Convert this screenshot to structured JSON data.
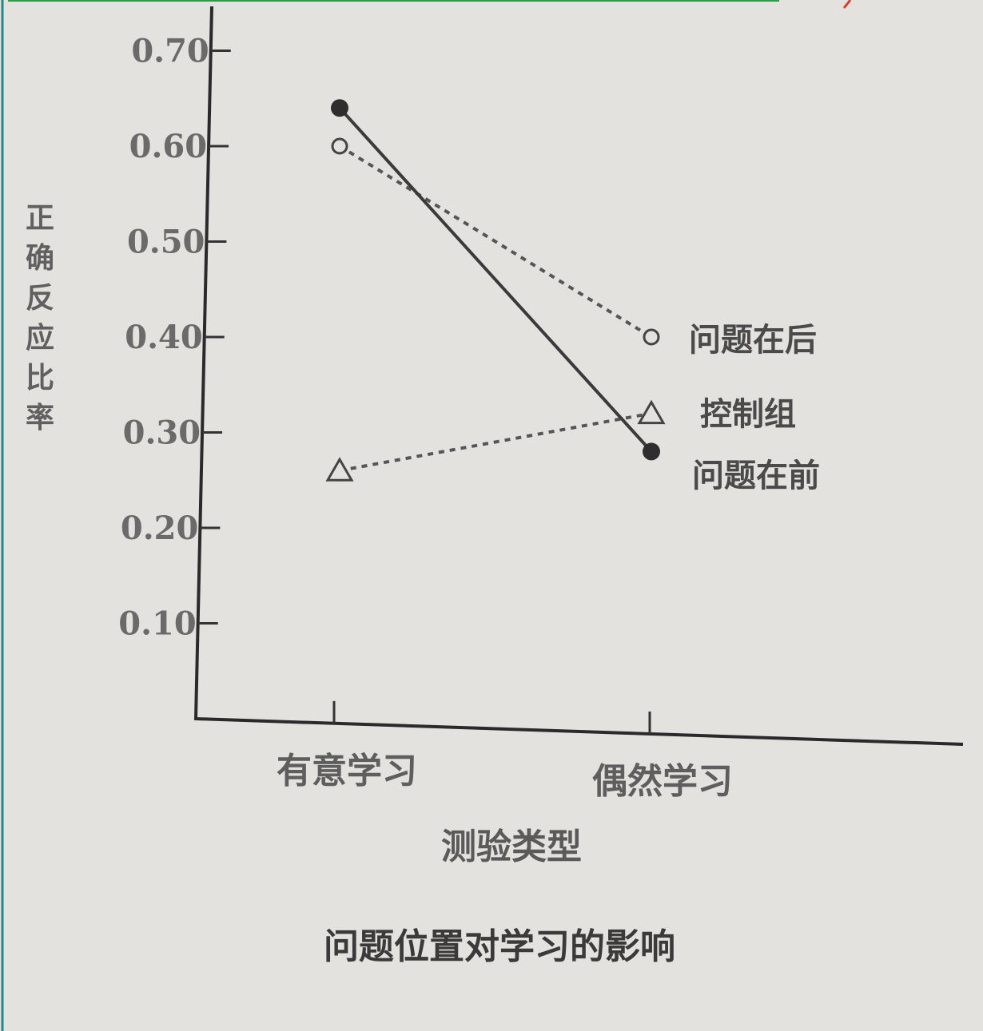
{
  "chart_data": {
    "type": "line",
    "title": "问题位置对学习的影响",
    "xlabel": "测验类型",
    "ylabel": "正确反应比率",
    "categories": [
      "有意学习",
      "偶然学习"
    ],
    "yticks": [
      "0.10",
      "0.20",
      "0.30",
      "0.40",
      "0.50",
      "0.60",
      "0.70"
    ],
    "ylim": [
      0,
      0.7
    ],
    "grid": false,
    "legend": "series labels placed beside line ends (right)",
    "series": [
      {
        "name": "问题在后",
        "values": [
          0.6,
          0.4
        ],
        "marker": "open-circle",
        "line": "dashed",
        "color": "#555555"
      },
      {
        "name": "控制组",
        "values": [
          0.26,
          0.32
        ],
        "marker": "open-triangle",
        "line": "dashed",
        "color": "#555555"
      },
      {
        "name": "问题在前",
        "values": [
          0.64,
          0.28
        ],
        "marker": "filled-circle",
        "line": "solid",
        "color": "#3a3a3a"
      }
    ]
  }
}
